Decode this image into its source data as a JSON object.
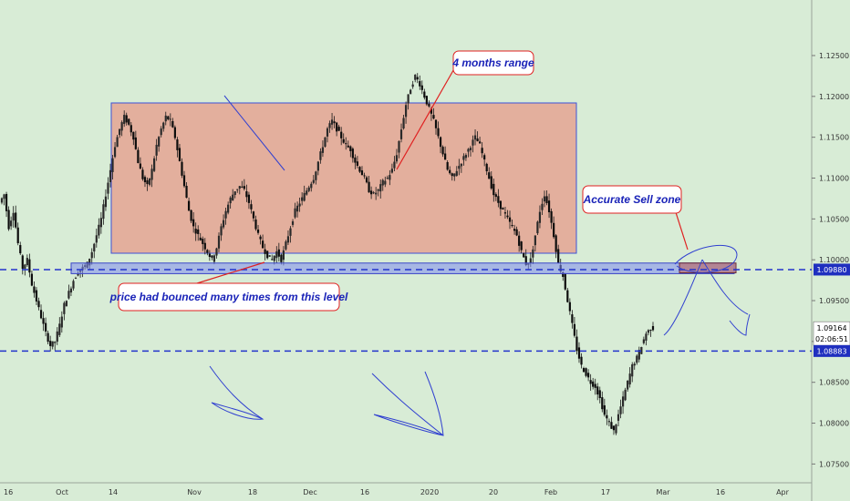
{
  "chart_data": {
    "type": "candlestick",
    "title": "",
    "xlabel": "",
    "ylabel": "",
    "ylim": [
      1.0727,
      1.1318
    ],
    "y_ticks": [
      "1.12500",
      "1.12000",
      "1.11500",
      "1.11000",
      "1.10500",
      "1.10000",
      "1.09500",
      "1.09000",
      "1.08500",
      "1.08000",
      "1.07500"
    ],
    "x_ticks": [
      "16",
      "Oct",
      "14",
      "Nov",
      "18",
      "Dec",
      "16",
      "2020",
      "20",
      "Feb",
      "17",
      "Mar",
      "16",
      "Apr"
    ],
    "grid": false,
    "legend": "none",
    "levels": [
      {
        "value": 1.0988,
        "label": "1.09880"
      },
      {
        "value": 1.08883,
        "label": "1.08883"
      }
    ],
    "current_price": {
      "value": 1.09164,
      "label": "1.09164",
      "countdown": "02:06:51"
    },
    "range_box": {
      "y_top": 1.1192,
      "y_bottom": 1.1008
    },
    "support_zone": {
      "y_top": 1.0996,
      "y_bottom": 1.0983
    },
    "sell_zone": {
      "y_top": 1.0996,
      "y_bottom": 1.0984
    },
    "annotations": [
      {
        "text": "4 months range"
      },
      {
        "text": "Accurate Sell zone"
      },
      {
        "text": "price had bounced many times from this level"
      }
    ],
    "ohlc_path": [
      1.107,
      1.108,
      1.104,
      1.106,
      1.102,
      1.099,
      1.1,
      1.097,
      1.095,
      1.093,
      1.091,
      1.0895,
      1.09,
      1.092,
      1.0945,
      1.096,
      1.0975,
      1.0985,
      1.099,
      1.0995,
      1.101,
      1.103,
      1.105,
      1.108,
      1.111,
      1.114,
      1.116,
      1.1175,
      1.1165,
      1.115,
      1.112,
      1.11,
      1.109,
      1.111,
      1.114,
      1.116,
      1.1175,
      1.117,
      1.115,
      1.112,
      1.109,
      1.106,
      1.104,
      1.103,
      1.102,
      1.101,
      1.1,
      1.1015,
      1.104,
      1.106,
      1.1075,
      1.1085,
      1.109,
      1.1085,
      1.107,
      1.105,
      1.103,
      1.1015,
      1.1005,
      1.1,
      1.101,
      1.1,
      1.102,
      1.104,
      1.106,
      1.107,
      1.108,
      1.109,
      1.11,
      1.112,
      1.114,
      1.116,
      1.117,
      1.116,
      1.115,
      1.114,
      1.1135,
      1.112,
      1.111,
      1.11,
      1.1085,
      1.108,
      1.1085,
      1.1095,
      1.11,
      1.111,
      1.113,
      1.116,
      1.119,
      1.121,
      1.1225,
      1.1215,
      1.12,
      1.1185,
      1.117,
      1.115,
      1.113,
      1.111,
      1.11,
      1.111,
      1.112,
      1.113,
      1.114,
      1.115,
      1.114,
      1.112,
      1.11,
      1.108,
      1.107,
      1.106,
      1.105,
      1.104,
      1.103,
      1.101,
      1.0995,
      1.1,
      1.103,
      1.106,
      1.108,
      1.106,
      1.103,
      1.0995,
      1.098,
      1.095,
      1.092,
      1.089,
      1.087,
      1.086,
      1.085,
      1.0845,
      1.083,
      1.081,
      1.08,
      1.079,
      1.081,
      1.083,
      1.085,
      1.087,
      1.088,
      1.0895,
      1.091,
      1.0916
    ]
  }
}
